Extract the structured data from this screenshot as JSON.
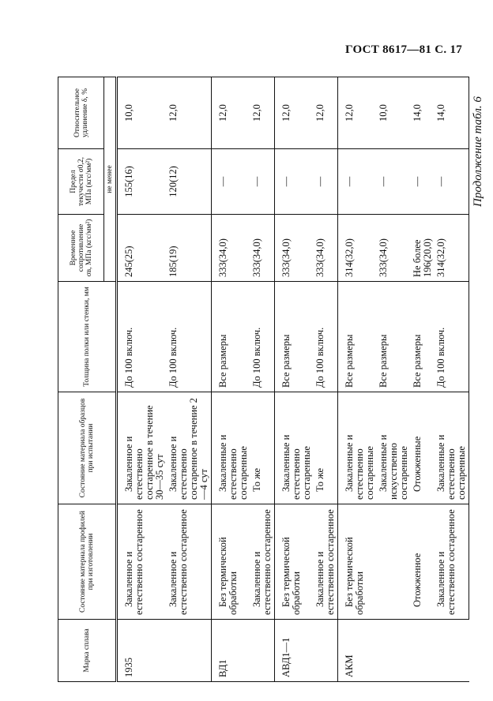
{
  "page_header": "ГОСТ 8617—81 С. 17",
  "caption": "Продолжение табл. 6",
  "table": {
    "columns": [
      "Марка сплава",
      "Состояние материала профилей при изготовлении",
      "Состояние материала образцов при испытании",
      "Толщина полки или стенки, мм",
      "Временное сопротивление σв, МПа (кгс/мм²)",
      "Предел текучести σ0,2, МПа (кгс/мм²)",
      "Относительное удлинение δ, %"
    ],
    "subheader": "не менее",
    "groups": [
      {
        "grade": "1935",
        "profile": [
          {
            "text": "Закаленное и естественно состаренное",
            "span": 1
          },
          {
            "text": "Закаленное и естественно состаренное",
            "span": 1
          }
        ],
        "rows": [
          {
            "sample": "Закаленное и естественно состаренное в течение 30—35 сут",
            "thickness": "До 100 включ.",
            "tensile": "245(25)",
            "yield": "155(16)",
            "elongation": "10,0"
          },
          {
            "sample": "Закаленное и естественно состаренное в течение 2—4 сут",
            "thickness": "До 100 включ.",
            "tensile": "185(19)",
            "yield": "120(12)",
            "elongation": "12,0"
          }
        ]
      },
      {
        "grade": "ВД1",
        "profile": [
          {
            "text": "Без термической обработки",
            "span": 1
          },
          {
            "text": "Закаленное и естественно состаренное",
            "span": 1
          }
        ],
        "rows": [
          {
            "sample": "Закаленные и естественно состаренные",
            "thickness": "Все размеры",
            "tensile": "333(34,0)",
            "yield": "—",
            "elongation": "12,0"
          },
          {
            "sample": "То же",
            "thickness": "До 100 включ.",
            "tensile": "333(34,0)",
            "yield": "—",
            "elongation": "12,0"
          }
        ]
      },
      {
        "grade": "АВД1—1",
        "profile": [
          {
            "text": "Без термической обработки",
            "span": 1
          },
          {
            "text": "Закаленное и естественно состаренное",
            "span": 1
          }
        ],
        "rows": [
          {
            "sample": "Закаленные и естественно состаренные",
            "thickness": "Все размеры",
            "tensile": "333(34,0)",
            "yield": "—",
            "elongation": "12,0"
          },
          {
            "sample": "То же",
            "thickness": "До 100 включ.",
            "tensile": "333(34,0)",
            "yield": "—",
            "elongation": "12,0"
          }
        ]
      },
      {
        "grade": "АКМ",
        "profile": [
          {
            "text": "Без термической обработки",
            "span": 2
          },
          {
            "text": "Отожженное",
            "span": 1
          },
          {
            "text": "Закаленное и естественно состаренное",
            "span": 1
          }
        ],
        "rows": [
          {
            "sample": "Закаленные и естественно состаренные",
            "thickness": "Все размеры",
            "tensile": "314(32,0)",
            "yield": "—",
            "elongation": "12,0"
          },
          {
            "sample": "Закаленные и искусственно состаренные",
            "thickness": "Все размеры",
            "tensile": "333(34,0)",
            "yield": "—",
            "elongation": "10,0"
          },
          {
            "sample": "Отожженные",
            "thickness": "Все размеры",
            "tensile": "Не более 196(20,0)",
            "yield": "—",
            "elongation": "14,0"
          },
          {
            "sample": "Закаленные и естественно состаренные",
            "thickness": "До 100 включ.",
            "tensile": "314(32,0)",
            "yield": "—",
            "elongation": "14,0"
          }
        ]
      }
    ]
  }
}
